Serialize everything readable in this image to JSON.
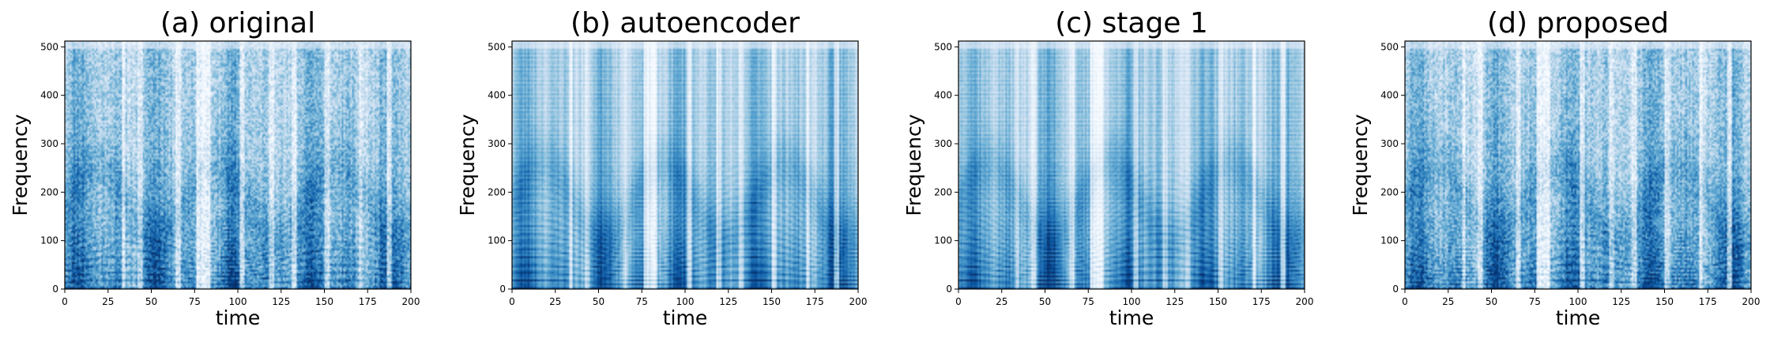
{
  "figure": {
    "type": "heatmap",
    "colormap": [
      "#f7fbff",
      "#deebf7",
      "#c6dbef",
      "#9ecae1",
      "#6baed6",
      "#4292c6",
      "#2171b5",
      "#08519c",
      "#08306b"
    ]
  },
  "chart_data": [
    {
      "type": "heatmap",
      "title": "(a) original",
      "xlabel": "time",
      "ylabel": "Frequency",
      "xlim": [
        0,
        200
      ],
      "ylim": [
        0,
        512
      ],
      "xticks": [
        0,
        25,
        50,
        75,
        100,
        125,
        150,
        175,
        200
      ],
      "yticks": [
        0,
        100,
        200,
        300,
        400,
        500
      ],
      "grid": false,
      "texture": "fine",
      "seed": 11
    },
    {
      "type": "heatmap",
      "title": "(b) autoencoder",
      "xlabel": "time",
      "ylabel": "Frequency",
      "xlim": [
        0,
        200
      ],
      "ylim": [
        0,
        512
      ],
      "xticks": [
        0,
        25,
        50,
        75,
        100,
        125,
        150,
        175,
        200
      ],
      "yticks": [
        0,
        100,
        200,
        300,
        400,
        500
      ],
      "grid": false,
      "texture": "smooth",
      "seed": 23
    },
    {
      "type": "heatmap",
      "title": "(c) stage 1",
      "xlabel": "time",
      "ylabel": "Frequency",
      "xlim": [
        0,
        200
      ],
      "ylim": [
        0,
        512
      ],
      "xticks": [
        0,
        25,
        50,
        75,
        100,
        125,
        150,
        175,
        200
      ],
      "yticks": [
        0,
        100,
        200,
        300,
        400,
        500
      ],
      "grid": false,
      "texture": "smooth",
      "seed": 37
    },
    {
      "type": "heatmap",
      "title": "(d) proposed",
      "xlabel": "time",
      "ylabel": "Frequency",
      "xlim": [
        0,
        200
      ],
      "ylim": [
        0,
        512
      ],
      "xticks": [
        0,
        25,
        50,
        75,
        100,
        125,
        150,
        175,
        200
      ],
      "yticks": [
        0,
        100,
        200,
        300,
        400,
        500
      ],
      "grid": false,
      "texture": "fine",
      "seed": 53
    }
  ]
}
